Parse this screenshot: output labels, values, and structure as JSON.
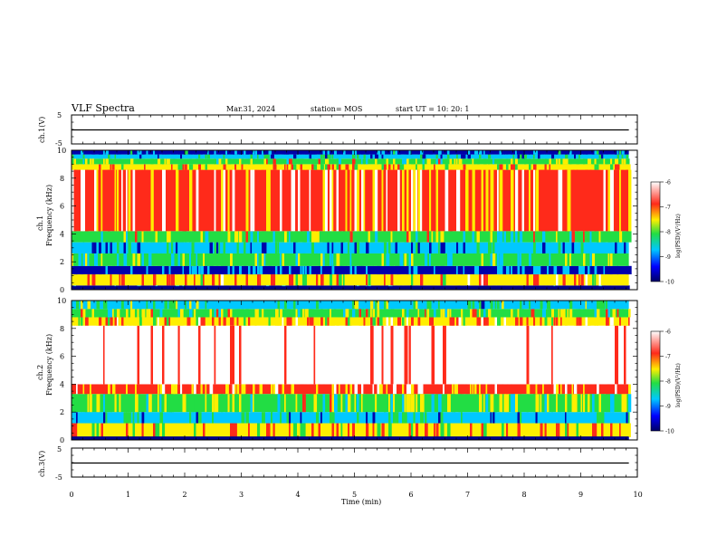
{
  "header": {
    "title": "VLF Spectra",
    "date": "Mar.31, 2024",
    "station": "station= MOS",
    "start": "start  UT  =    10: 20: 1"
  },
  "panels": {
    "ch1v_label": "ch.1(V)",
    "ch3v_label": "ch.3(V)",
    "ch1_label": "ch.1",
    "ch2_label": "ch.2",
    "freq_label": "Frequency  (kHz)",
    "xlabel": "Time  (min)",
    "colorbar_label": "log(PSD)(V²/Hz)"
  },
  "colors": {
    "high": "#ff2a1a",
    "mid": "#ffee00",
    "low": "#22dd44",
    "lower": "#00c8ff",
    "lowest": "#0000aa"
  },
  "chart_data": [
    {
      "type": "line",
      "name": "ch.1(V)",
      "ylabel": "ch.1(V)",
      "xlabel": "Time  (min)",
      "xlim": [
        0,
        10
      ],
      "ylim": [
        -5,
        5
      ],
      "x_ticks": [
        "0",
        "1",
        "2",
        "3",
        "4",
        "5",
        "6",
        "7",
        "8",
        "9",
        "10"
      ],
      "y_ticks": [
        "5",
        "-5"
      ],
      "x": [
        0,
        9.85
      ],
      "values": [
        0,
        0
      ]
    },
    {
      "type": "heatmap",
      "name": "ch.1",
      "ylabel": "Frequency  (kHz)",
      "xlim": [
        0,
        10
      ],
      "ylim": [
        0,
        10
      ],
      "y_ticks": [
        "0",
        "2",
        "4",
        "6",
        "8",
        "10"
      ],
      "bands": [
        {
          "f": [
            0.0,
            0.3
          ],
          "level": -10
        },
        {
          "f": [
            0.3,
            1.1
          ],
          "level": -7.2
        },
        {
          "f": [
            1.1,
            1.7
          ],
          "level": -9.5
        },
        {
          "f": [
            1.7,
            2.6
          ],
          "level": -8.3
        },
        {
          "f": [
            2.6,
            3.4
          ],
          "level": -9.0
        },
        {
          "f": [
            3.4,
            4.2
          ],
          "level": -8.0
        },
        {
          "f": [
            4.2,
            8.6
          ],
          "level": -6.8
        },
        {
          "f": [
            8.6,
            9.0
          ],
          "level": -7.5
        },
        {
          "f": [
            9.0,
            9.4
          ],
          "level": -8.0
        },
        {
          "f": [
            9.4,
            9.7
          ],
          "level": -8.8
        },
        {
          "f": [
            9.7,
            10.0
          ],
          "level": -9.4
        }
      ],
      "colorbar": {
        "range": [
          -10,
          -6
        ],
        "ticks": [
          "-6",
          "-7",
          "-8",
          "-9",
          "-10"
        ]
      }
    },
    {
      "type": "heatmap",
      "name": "ch.2",
      "ylabel": "Frequency  (kHz)",
      "xlim": [
        0,
        10
      ],
      "ylim": [
        0,
        10
      ],
      "y_ticks": [
        "0",
        "2",
        "4",
        "6",
        "8",
        "10"
      ],
      "bands": [
        {
          "f": [
            0.0,
            0.2
          ],
          "level": -10
        },
        {
          "f": [
            0.2,
            1.2
          ],
          "level": -7.4
        },
        {
          "f": [
            1.2,
            2.0
          ],
          "level": -8.8
        },
        {
          "f": [
            2.0,
            3.3
          ],
          "level": -8.0
        },
        {
          "f": [
            3.3,
            4.0
          ],
          "level": -7.0
        },
        {
          "f": [
            4.0,
            8.2
          ],
          "level": -6.0
        },
        {
          "f": [
            8.2,
            8.8
          ],
          "level": -7.2
        },
        {
          "f": [
            8.8,
            9.4
          ],
          "level": -7.9
        },
        {
          "f": [
            9.4,
            10.0
          ],
          "level": -8.5
        }
      ],
      "colorbar": {
        "range": [
          -10,
          -6
        ],
        "ticks": [
          "-6",
          "-7",
          "-8",
          "-9",
          "-10"
        ]
      }
    },
    {
      "type": "line",
      "name": "ch.3(V)",
      "ylabel": "ch.3(V)",
      "xlim": [
        0,
        10
      ],
      "ylim": [
        -5,
        5
      ],
      "y_ticks": [
        "5",
        "-5"
      ],
      "x": [
        0,
        9.85
      ],
      "values": [
        0,
        0
      ]
    }
  ]
}
